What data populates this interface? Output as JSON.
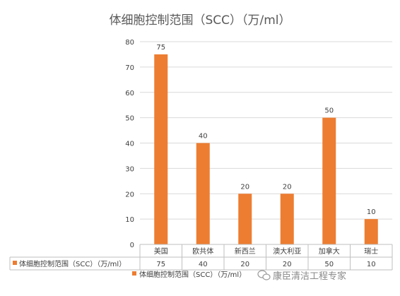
{
  "chart_data": {
    "type": "bar",
    "title": "体细胞控制范围（SCC）（万/ml）",
    "categories": [
      "美国",
      "欧共体",
      "新西兰",
      "澳大利亚",
      "加拿大",
      "瑞士"
    ],
    "series": [
      {
        "name": "体细胞控制范围（SCC）（万/ml）",
        "values": [
          75,
          40,
          20,
          20,
          50,
          10
        ],
        "color": "#ED7D31"
      }
    ],
    "ylim": [
      0,
      80
    ],
    "yticks": [
      0,
      10,
      20,
      30,
      40,
      50,
      60,
      70,
      80
    ],
    "grid": true,
    "data_table": true,
    "legend_position": "bottom"
  },
  "watermark": {
    "text": "康臣清洁工程专家",
    "icon": "wechat-icon"
  }
}
